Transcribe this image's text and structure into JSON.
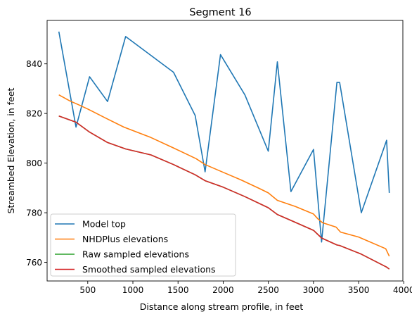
{
  "chart_data": {
    "type": "line",
    "title": "Segment 16",
    "xlabel": "Distance along stream profile, in feet",
    "ylabel": "Streambed Elevation, in feet",
    "xlim": [
      50,
      3990
    ],
    "ylim": [
      752.5,
      857.5
    ],
    "xticks": [
      500,
      1000,
      1500,
      2000,
      2500,
      3000,
      3500,
      4000
    ],
    "yticks": [
      760,
      780,
      800,
      820,
      840
    ],
    "xtick_labels": [
      "500",
      "1000",
      "1500",
      "2000",
      "2500",
      "3000",
      "3500",
      "4000"
    ],
    "ytick_labels": [
      "760",
      "780",
      "800",
      "820",
      "840"
    ],
    "grid": false,
    "legend_position": "lower-left",
    "series": [
      {
        "name": "Model top",
        "color": "#1f77b4",
        "x": [
          180,
          370,
          520,
          720,
          920,
          1450,
          1690,
          1800,
          1970,
          2240,
          2500,
          2600,
          2750,
          3000,
          3090,
          3260,
          3290,
          3530,
          3810,
          3840
        ],
        "y": [
          853,
          814.5,
          834.8,
          824.8,
          851,
          836.6,
          819.2,
          796.5,
          843.7,
          827.5,
          804.8,
          840.8,
          788.5,
          805.5,
          768.2,
          832.5,
          832.5,
          780,
          809.2,
          788
        ]
      },
      {
        "name": "NHDPlus elevations",
        "color": "#ff7f0e",
        "x": [
          180,
          300,
          400,
          500,
          700,
          900,
          1200,
          1450,
          1700,
          1800,
          2000,
          2200,
          2400,
          2500,
          2600,
          2800,
          3000,
          3050,
          3100,
          3250,
          3300,
          3500,
          3800,
          3840
        ],
        "y": [
          827.5,
          825.1,
          823.5,
          821.8,
          818.1,
          814.5,
          810.3,
          806.1,
          801.8,
          799.4,
          796.3,
          793.2,
          789.8,
          788,
          785,
          782.5,
          779.5,
          777.5,
          776,
          774.2,
          772.2,
          770.2,
          765.5,
          762.5
        ]
      },
      {
        "name": "Raw sampled elevations",
        "color": "#2ca02c",
        "x": [
          180,
          370,
          520,
          720,
          920,
          1200,
          1450,
          1690,
          1800,
          2000,
          2240,
          2500,
          2600,
          2750,
          3000,
          3090,
          3260,
          3290,
          3530,
          3810,
          3840
        ],
        "y": [
          819,
          816.5,
          812.5,
          808.3,
          805.7,
          803.3,
          799.4,
          795.3,
          792.9,
          790.3,
          786.5,
          782,
          779.3,
          776.9,
          772.9,
          769.8,
          767,
          766.8,
          763.3,
          758.1,
          757.3
        ]
      },
      {
        "name": "Smoothed sampled elevations",
        "color": "#d62728",
        "x": [
          180,
          370,
          520,
          720,
          920,
          1200,
          1450,
          1690,
          1800,
          2000,
          2240,
          2500,
          2600,
          2750,
          3000,
          3090,
          3260,
          3290,
          3530,
          3810,
          3840
        ],
        "y": [
          819,
          816.5,
          812.5,
          808.3,
          805.7,
          803.3,
          799.4,
          795.3,
          792.9,
          790.3,
          786.5,
          782,
          779.3,
          776.9,
          772.9,
          769.8,
          767,
          766.8,
          763.3,
          758.1,
          757.3
        ]
      }
    ]
  }
}
